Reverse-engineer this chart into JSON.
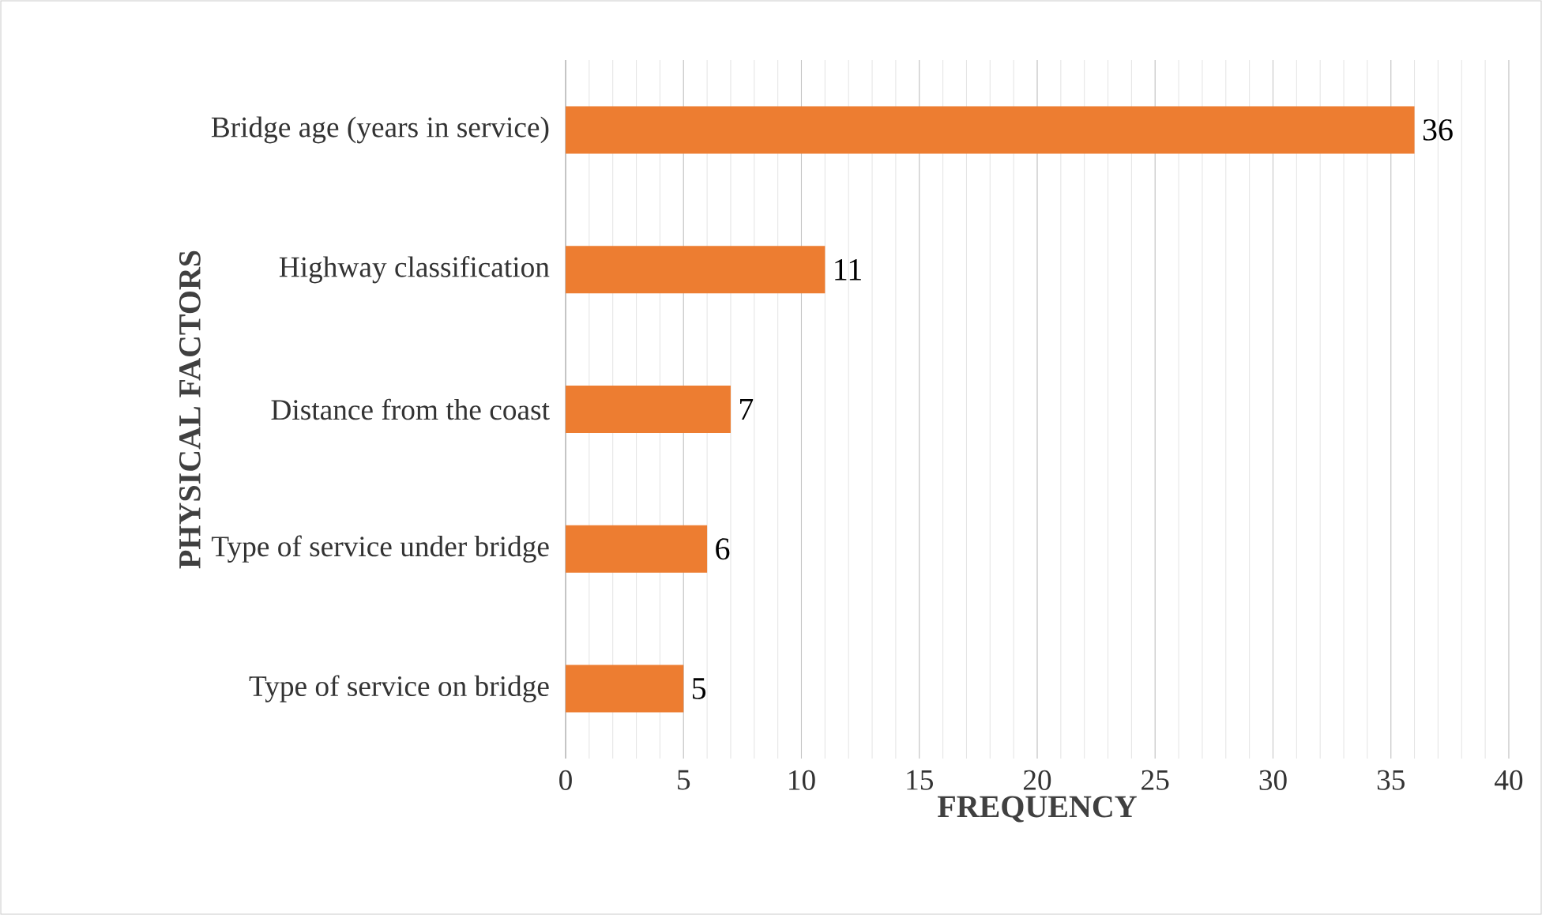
{
  "chart_data": {
    "type": "bar",
    "orientation": "horizontal",
    "categories": [
      "Bridge age (years in service)",
      "Highway classification",
      "Distance from the coast",
      "Type of service under bridge",
      "Type of service on bridge"
    ],
    "values": [
      36,
      11,
      7,
      6,
      5
    ],
    "color": "#ed7d31",
    "xlim": [
      0,
      40
    ],
    "xticks": [
      0,
      5,
      10,
      15,
      20,
      25,
      30,
      35,
      40
    ],
    "xlabel": "FREQUENCY",
    "ylabel": "PHYSICAL FACTORS",
    "grid": "x",
    "data_labels": true
  }
}
